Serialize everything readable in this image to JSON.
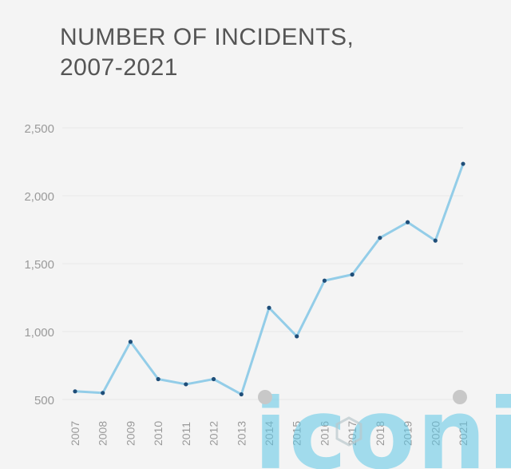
{
  "title": "NUMBER OF INCIDENTS,\n2007-2021",
  "watermark": "iconic",
  "chart_data": {
    "type": "line",
    "title": "NUMBER OF INCIDENTS, 2007-2021",
    "xlabel": "",
    "ylabel": "",
    "ylim": [
      500,
      2500
    ],
    "yticks": [
      "500",
      "1,000",
      "1,500",
      "2,000",
      "2,500"
    ],
    "categories": [
      "2007",
      "2008",
      "2009",
      "2010",
      "2011",
      "2012",
      "2013",
      "2014",
      "2015",
      "2016",
      "2017",
      "2018",
      "2019",
      "2020",
      "2021"
    ],
    "values": [
      560,
      548,
      925,
      650,
      612,
      650,
      538,
      1175,
      965,
      1375,
      1420,
      1690,
      1805,
      1670,
      2235
    ],
    "grid": true,
    "line_color": "#93cde8",
    "marker_color": "#1f4e79",
    "grid_color": "#e8e8e8"
  }
}
